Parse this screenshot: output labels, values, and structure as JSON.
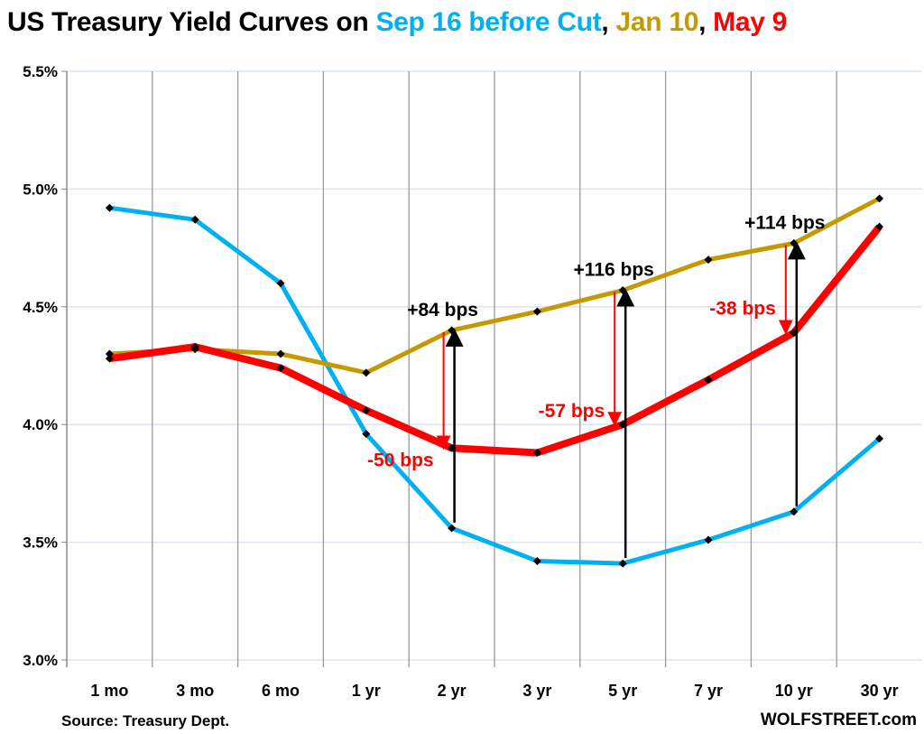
{
  "title": {
    "prefix": "US Treasury Yield Curves on ",
    "part1": "Sep 16 before Cut",
    "sep1": ", ",
    "part2": "Jan 10",
    "sep2": ", ",
    "part3": "May 9"
  },
  "source": "Source: Treasury Dept.",
  "watermark": "WOLFSTREET.com",
  "chart_data": {
    "type": "line",
    "categories": [
      "1 mo",
      "3 mo",
      "6 mo",
      "1 yr",
      "2 yr",
      "3 yr",
      "5 yr",
      "7 yr",
      "10 yr",
      "30 yr"
    ],
    "ylim": [
      3.0,
      5.5
    ],
    "yticks": [
      "3.0%",
      "3.5%",
      "4.0%",
      "4.5%",
      "5.0%",
      "5.5%"
    ],
    "ytick_values": [
      3.0,
      3.5,
      4.0,
      4.5,
      5.0,
      5.5
    ],
    "grid": true,
    "series": [
      {
        "name": "Sep 16 before Cut",
        "color": "#00B0F0",
        "values": [
          4.92,
          4.87,
          4.6,
          3.96,
          3.56,
          3.42,
          3.41,
          3.51,
          3.63,
          3.94
        ]
      },
      {
        "name": "Jan 10",
        "color": "#C49A00",
        "values": [
          4.3,
          4.32,
          4.3,
          4.22,
          4.4,
          4.48,
          4.57,
          4.7,
          4.77,
          4.96
        ]
      },
      {
        "name": "May 9",
        "color": "#FF0000",
        "values": [
          4.28,
          4.33,
          4.24,
          4.06,
          3.9,
          3.88,
          4.0,
          4.19,
          4.39,
          4.84
        ]
      }
    ],
    "annotations": [
      {
        "category": "2 yr",
        "from": 3.56,
        "to": 4.4,
        "label": "+84 bps",
        "color": "#000000"
      },
      {
        "category": "5 yr",
        "from": 3.41,
        "to": 4.57,
        "label": "+116 bps",
        "color": "#000000"
      },
      {
        "category": "10 yr",
        "from": 3.63,
        "to": 4.77,
        "label": "+114 bps",
        "color": "#000000"
      },
      {
        "category": "2 yr",
        "from": 4.4,
        "to": 3.9,
        "label": "-50 bps",
        "color": "#FF0000"
      },
      {
        "category": "5 yr",
        "from": 4.57,
        "to": 4.0,
        "label": "-57 bps",
        "color": "#FF0000"
      },
      {
        "category": "10 yr",
        "from": 4.77,
        "to": 4.39,
        "label": "-38 bps",
        "color": "#FF0000"
      }
    ]
  }
}
